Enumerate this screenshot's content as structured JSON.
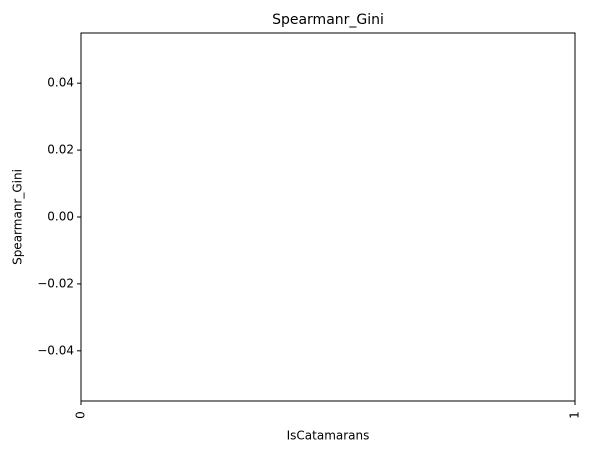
{
  "chart_data": {
    "type": "bar",
    "title": "Spearmanr_Gini",
    "x_label": "IsCatamarans",
    "y_label": "Spearmanr_Gini",
    "categories": [
      "0",
      "1"
    ],
    "x": [
      0,
      1
    ],
    "values": [
      0,
      0
    ],
    "color": "#1f77b4",
    "xlim": [
      0,
      1
    ],
    "ylim": [
      -0.055,
      0.055
    ],
    "yticks": [
      {
        "value": -0.04,
        "label": "−0.04"
      },
      {
        "value": -0.02,
        "label": "−0.02"
      },
      {
        "value": 0,
        "label": "0.00"
      },
      {
        "value": 0.02,
        "label": "0.02"
      },
      {
        "value": 0.04,
        "label": "0.04"
      }
    ],
    "grid": false
  }
}
